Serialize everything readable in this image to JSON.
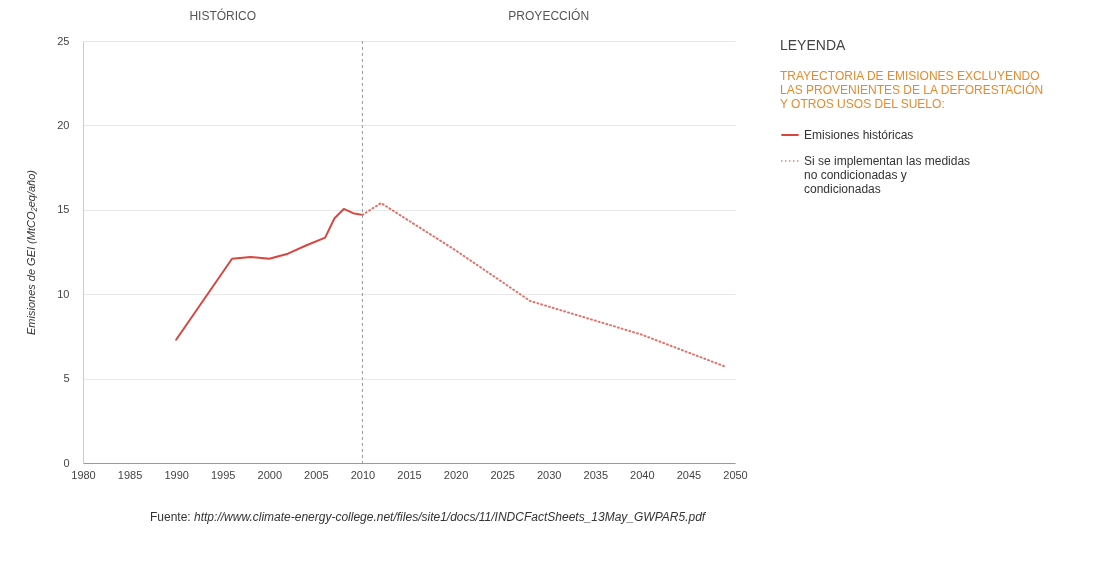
{
  "chart_data": {
    "type": "line",
    "ylabel": "Emisiones de GEI (MtCO₂eq/año)",
    "legend_title": "TRAYECTORIA DE EMISIONES EXCLUYENDO LAS PROVENIENTES DE LA DEFORESTACIÓN Y OTROS USOS DEL SUELO:",
    "legend": "right",
    "xlim": [
      1980,
      2050
    ],
    "xticks": [
      1980,
      1985,
      1990,
      1995,
      2000,
      2005,
      2010,
      2015,
      2020,
      2025,
      2030,
      2035,
      2040,
      2045,
      2050
    ],
    "ylim": [
      0,
      25
    ],
    "yticks": [
      0,
      5,
      10,
      15,
      20,
      25
    ],
    "grid": "y",
    "series": [
      {
        "name": "Emisiones históricas",
        "color": "#d9463e",
        "line_style": "solid",
        "x": [
          1990,
          1996,
          1998,
          2000,
          2002,
          2004,
          2006,
          2007,
          2008,
          2009,
          2010
        ],
        "values": [
          7.3,
          12.1,
          12.2,
          12.1,
          12.4,
          12.9,
          13.35,
          14.5,
          15.05,
          14.8,
          14.7
        ]
      },
      {
        "name": "Si se implementan las medidas no condicionadas y condicionadas",
        "color": "#e0736a",
        "line_style": "dotted",
        "x": [
          2010,
          2012,
          2020,
          2028,
          2040,
          2049
        ],
        "values": [
          14.7,
          15.4,
          12.6,
          9.6,
          7.6,
          5.7
        ]
      }
    ],
    "ref_lines": [
      {
        "axis": "x",
        "value": 2010,
        "color": "#999999",
        "line_style": "dashed"
      }
    ],
    "annotations": [
      "HISTÓRICO",
      "PROYECCIÓN",
      "LEYENDA",
      "Fuente: http://www.climate-energy-college.net/files/site1/docs/11/INDCFactSheets_13May_GWPAR5.pdf"
    ]
  }
}
